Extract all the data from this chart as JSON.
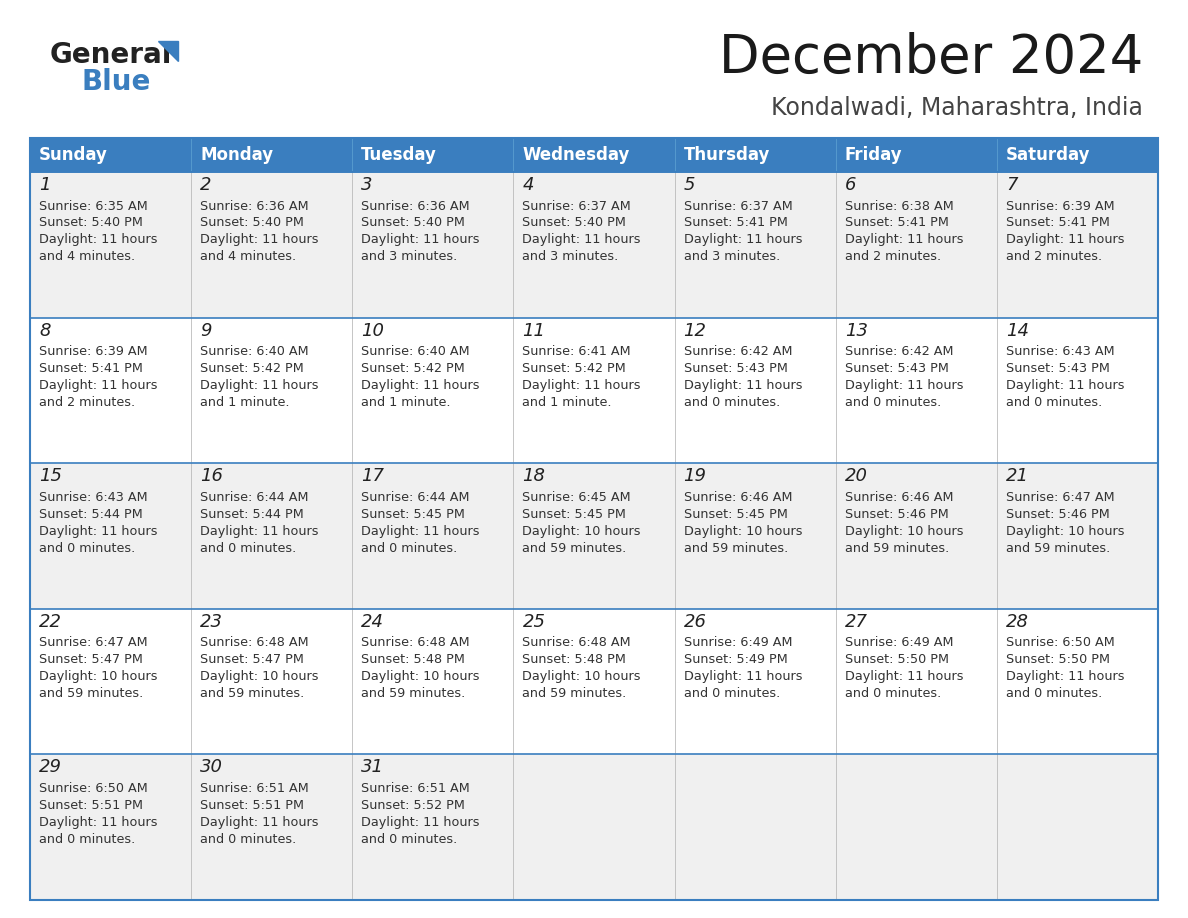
{
  "title": "December 2024",
  "subtitle": "Kondalwadi, Maharashtra, India",
  "days_of_week": [
    "Sunday",
    "Monday",
    "Tuesday",
    "Wednesday",
    "Thursday",
    "Friday",
    "Saturday"
  ],
  "header_bg": "#3a7ebf",
  "header_text": "#ffffff",
  "row_bg_odd": "#f0f0f0",
  "row_bg_even": "#ffffff",
  "cell_border": "#3a7ebf",
  "cell_border_inner": "#bbbbbb",
  "day_num_color": "#222222",
  "info_color": "#333333",
  "title_color": "#1a1a1a",
  "subtitle_color": "#444444",
  "calendar_data": [
    [
      {
        "day": 1,
        "sunrise": "6:35 AM",
        "sunset": "5:40 PM",
        "daylight": "11 hours and 4 minutes."
      },
      {
        "day": 2,
        "sunrise": "6:36 AM",
        "sunset": "5:40 PM",
        "daylight": "11 hours and 4 minutes."
      },
      {
        "day": 3,
        "sunrise": "6:36 AM",
        "sunset": "5:40 PM",
        "daylight": "11 hours and 3 minutes."
      },
      {
        "day": 4,
        "sunrise": "6:37 AM",
        "sunset": "5:40 PM",
        "daylight": "11 hours and 3 minutes."
      },
      {
        "day": 5,
        "sunrise": "6:37 AM",
        "sunset": "5:41 PM",
        "daylight": "11 hours and 3 minutes."
      },
      {
        "day": 6,
        "sunrise": "6:38 AM",
        "sunset": "5:41 PM",
        "daylight": "11 hours and 2 minutes."
      },
      {
        "day": 7,
        "sunrise": "6:39 AM",
        "sunset": "5:41 PM",
        "daylight": "11 hours and 2 minutes."
      }
    ],
    [
      {
        "day": 8,
        "sunrise": "6:39 AM",
        "sunset": "5:41 PM",
        "daylight": "11 hours and 2 minutes."
      },
      {
        "day": 9,
        "sunrise": "6:40 AM",
        "sunset": "5:42 PM",
        "daylight": "11 hours and 1 minute."
      },
      {
        "day": 10,
        "sunrise": "6:40 AM",
        "sunset": "5:42 PM",
        "daylight": "11 hours and 1 minute."
      },
      {
        "day": 11,
        "sunrise": "6:41 AM",
        "sunset": "5:42 PM",
        "daylight": "11 hours and 1 minute."
      },
      {
        "day": 12,
        "sunrise": "6:42 AM",
        "sunset": "5:43 PM",
        "daylight": "11 hours and 0 minutes."
      },
      {
        "day": 13,
        "sunrise": "6:42 AM",
        "sunset": "5:43 PM",
        "daylight": "11 hours and 0 minutes."
      },
      {
        "day": 14,
        "sunrise": "6:43 AM",
        "sunset": "5:43 PM",
        "daylight": "11 hours and 0 minutes."
      }
    ],
    [
      {
        "day": 15,
        "sunrise": "6:43 AM",
        "sunset": "5:44 PM",
        "daylight": "11 hours and 0 minutes."
      },
      {
        "day": 16,
        "sunrise": "6:44 AM",
        "sunset": "5:44 PM",
        "daylight": "11 hours and 0 minutes."
      },
      {
        "day": 17,
        "sunrise": "6:44 AM",
        "sunset": "5:45 PM",
        "daylight": "11 hours and 0 minutes."
      },
      {
        "day": 18,
        "sunrise": "6:45 AM",
        "sunset": "5:45 PM",
        "daylight": "10 hours and 59 minutes."
      },
      {
        "day": 19,
        "sunrise": "6:46 AM",
        "sunset": "5:45 PM",
        "daylight": "10 hours and 59 minutes."
      },
      {
        "day": 20,
        "sunrise": "6:46 AM",
        "sunset": "5:46 PM",
        "daylight": "10 hours and 59 minutes."
      },
      {
        "day": 21,
        "sunrise": "6:47 AM",
        "sunset": "5:46 PM",
        "daylight": "10 hours and 59 minutes."
      }
    ],
    [
      {
        "day": 22,
        "sunrise": "6:47 AM",
        "sunset": "5:47 PM",
        "daylight": "10 hours and 59 minutes."
      },
      {
        "day": 23,
        "sunrise": "6:48 AM",
        "sunset": "5:47 PM",
        "daylight": "10 hours and 59 minutes."
      },
      {
        "day": 24,
        "sunrise": "6:48 AM",
        "sunset": "5:48 PM",
        "daylight": "10 hours and 59 minutes."
      },
      {
        "day": 25,
        "sunrise": "6:48 AM",
        "sunset": "5:48 PM",
        "daylight": "10 hours and 59 minutes."
      },
      {
        "day": 26,
        "sunrise": "6:49 AM",
        "sunset": "5:49 PM",
        "daylight": "11 hours and 0 minutes."
      },
      {
        "day": 27,
        "sunrise": "6:49 AM",
        "sunset": "5:50 PM",
        "daylight": "11 hours and 0 minutes."
      },
      {
        "day": 28,
        "sunrise": "6:50 AM",
        "sunset": "5:50 PM",
        "daylight": "11 hours and 0 minutes."
      }
    ],
    [
      {
        "day": 29,
        "sunrise": "6:50 AM",
        "sunset": "5:51 PM",
        "daylight": "11 hours and 0 minutes."
      },
      {
        "day": 30,
        "sunrise": "6:51 AM",
        "sunset": "5:51 PM",
        "daylight": "11 hours and 0 minutes."
      },
      {
        "day": 31,
        "sunrise": "6:51 AM",
        "sunset": "5:52 PM",
        "daylight": "11 hours and 0 minutes."
      },
      null,
      null,
      null,
      null
    ]
  ],
  "logo_triangle_color": "#3a7ebf"
}
